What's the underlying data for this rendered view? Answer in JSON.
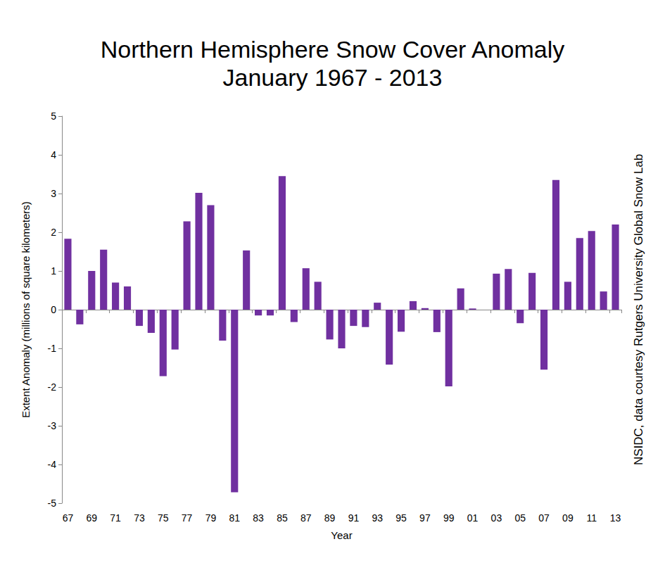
{
  "chart_data": {
    "type": "bar",
    "title": "Northern Hemisphere Snow Cover Anomaly",
    "subtitle": "January 1967 - 2013",
    "x_label": "Year",
    "y_label": "Extent Anomaly (millions of square kilometers)",
    "annotation": "NSIDC, data courtesy Rutgers University Global Snow Lab",
    "categories": [
      "67",
      null,
      "69",
      null,
      "71",
      null,
      "73",
      null,
      "75",
      null,
      "77",
      null,
      "79",
      null,
      "81",
      null,
      "83",
      null,
      "85",
      null,
      "87",
      null,
      "89",
      null,
      "91",
      null,
      "93",
      null,
      "95",
      null,
      "97",
      null,
      "99",
      null,
      "01",
      null,
      "03",
      null,
      "05",
      null,
      "07",
      null,
      "09",
      null,
      "11",
      null,
      "13"
    ],
    "values": [
      1.83,
      -0.38,
      1.0,
      1.55,
      0.7,
      0.6,
      -0.42,
      -0.6,
      -1.72,
      -1.03,
      2.28,
      3.02,
      2.7,
      -0.8,
      -4.72,
      1.53,
      -0.15,
      -0.15,
      3.45,
      -0.32,
      1.07,
      0.72,
      -0.77,
      -1.0,
      -0.42,
      -0.45,
      0.18,
      -1.42,
      -0.57,
      0.22,
      0.04,
      -0.58,
      -1.98,
      0.55,
      0.03,
      0.0,
      0.93,
      1.05,
      -0.35,
      0.95,
      -1.55,
      3.35,
      0.72,
      1.85,
      2.03,
      0.47,
      2.2
    ],
    "color": "#7030a0",
    "ylim": [
      -5,
      5
    ],
    "yticks": [
      -5,
      -4,
      -3,
      -2,
      -1,
      0,
      1,
      2,
      3,
      4,
      5
    ],
    "grid": false
  }
}
